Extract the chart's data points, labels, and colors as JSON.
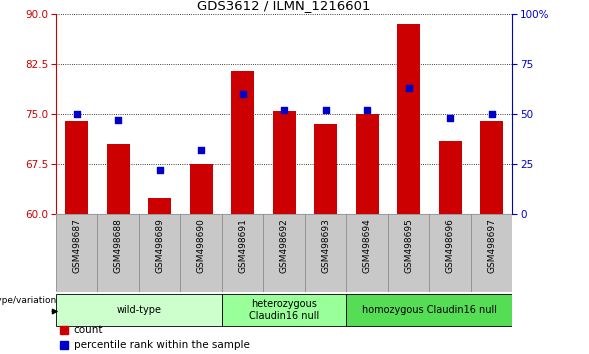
{
  "title": "GDS3612 / ILMN_1216601",
  "samples": [
    "GSM498687",
    "GSM498688",
    "GSM498689",
    "GSM498690",
    "GSM498691",
    "GSM498692",
    "GSM498693",
    "GSM498694",
    "GSM498695",
    "GSM498696",
    "GSM498697"
  ],
  "bar_values": [
    74.0,
    70.5,
    62.5,
    67.5,
    81.5,
    75.5,
    73.5,
    75.0,
    88.5,
    71.0,
    74.0
  ],
  "dot_pct": [
    50,
    47,
    22,
    32,
    60,
    52,
    52,
    52,
    63,
    48,
    50
  ],
  "ylim_left": [
    60,
    90
  ],
  "ylim_right": [
    0,
    100
  ],
  "yticks_left": [
    60,
    67.5,
    75,
    82.5,
    90
  ],
  "yticks_right": [
    0,
    25,
    50,
    75,
    100
  ],
  "bar_color": "#CC0000",
  "dot_color": "#0000CC",
  "groups": [
    {
      "label": "wild-type",
      "indices": [
        0,
        1,
        2,
        3
      ],
      "color": "#CCFFCC"
    },
    {
      "label": "heterozygous\nClaudin16 null",
      "indices": [
        4,
        5,
        6
      ],
      "color": "#99FF99"
    },
    {
      "label": "homozygous Claudin16 null",
      "indices": [
        7,
        8,
        9,
        10
      ],
      "color": "#55DD55"
    }
  ],
  "genotype_label": "genotype/variation",
  "legend_count_label": "count",
  "legend_pct_label": "percentile rank within the sample",
  "bg_color": "#FFFFFF",
  "tick_color_left": "#CC0000",
  "tick_color_right": "#0000CC",
  "right_yaxis_label": "100%",
  "sample_box_color": "#C8C8C8",
  "sample_box_edge": "#888888"
}
